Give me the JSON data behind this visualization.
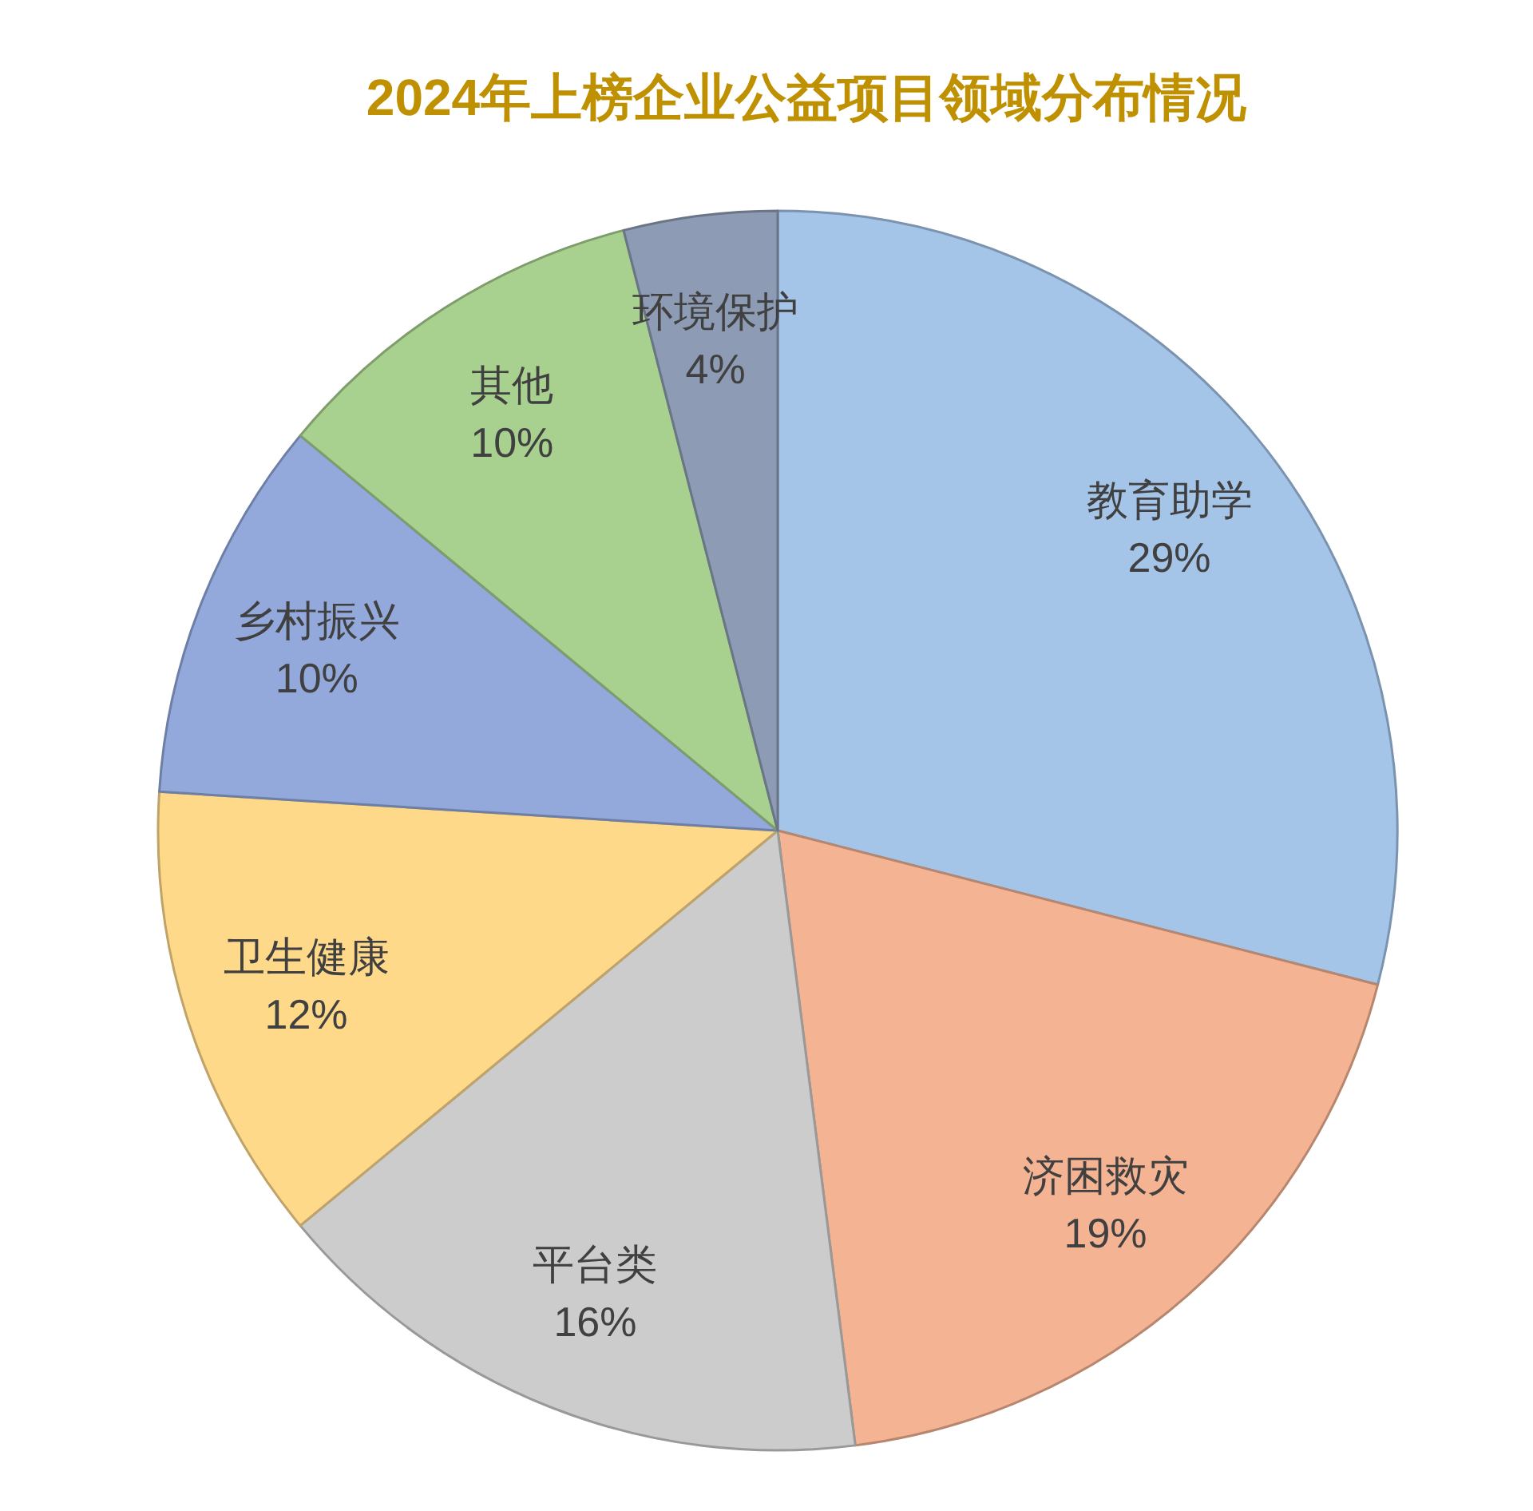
{
  "chart_data": {
    "type": "pie",
    "title": "2024年上榜企业公益项目领域分布情况",
    "categories": [
      "教育助学",
      "济困救灾",
      "平台类",
      "卫生健康",
      "乡村振兴",
      "其他",
      "环境保护"
    ],
    "values": [
      29,
      19,
      16,
      12,
      10,
      10,
      4
    ],
    "value_labels": [
      "29%",
      "19%",
      "16%",
      "12%",
      "10%",
      "10%",
      "4%"
    ],
    "colors": [
      "#a4c4e8",
      "#f4b393",
      "#cccccc",
      "#ffd98a",
      "#93a9dc",
      "#a8d18f",
      "#8d9cb4"
    ]
  }
}
